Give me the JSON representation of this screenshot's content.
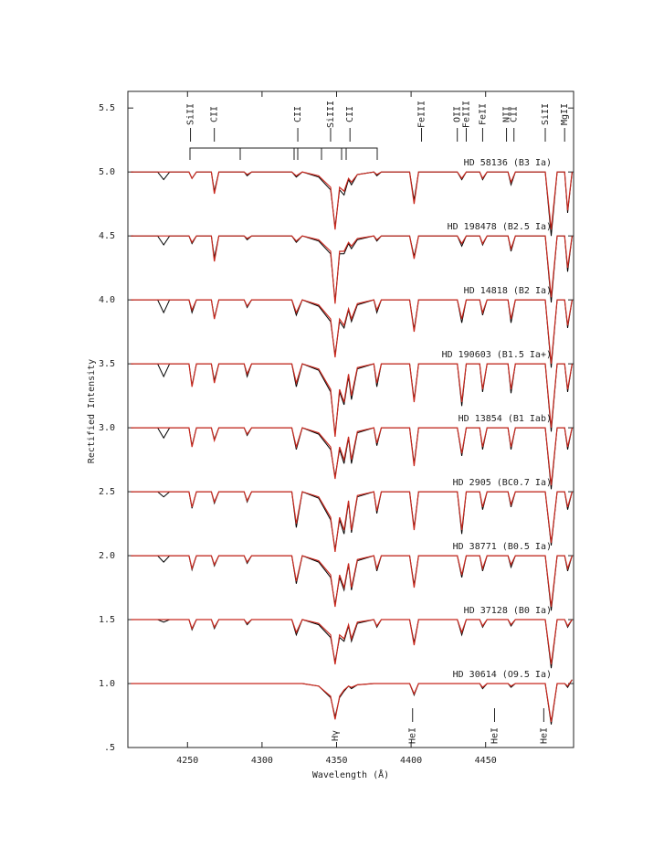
{
  "chart_data": {
    "type": "line",
    "x_label": "Wavelength (Å)",
    "y_label": "Rectified Intensity",
    "xlim": [
      4210,
      4509
    ],
    "ylim": [
      0.5,
      5.63
    ],
    "xticks": [
      4250,
      4300,
      4350,
      4400,
      4450
    ],
    "yticks": [
      {
        "value": 5.5,
        "label": "5.5"
      },
      {
        "value": 5,
        "label": "5.0"
      },
      {
        "value": 4.5,
        "label": "4.5"
      },
      {
        "value": 4,
        "label": "4.0"
      },
      {
        "value": 3.5,
        "label": "3.5"
      },
      {
        "value": 3,
        "label": "3.0"
      },
      {
        "value": 2.5,
        "label": "2.5"
      },
      {
        "value": 2,
        "label": "2.0"
      },
      {
        "value": 1.5,
        "label": "1.5"
      },
      {
        "value": 1,
        "label": "1.0"
      },
      {
        "value": 0.5,
        "label": ".5"
      }
    ],
    "x": [
      4212,
      4230,
      4234,
      4238,
      4251,
      4253,
      4256,
      4266,
      4268,
      4271,
      4288,
      4290,
      4293,
      4320,
      4323,
      4327,
      4338,
      4346,
      4349,
      4352,
      4355,
      4358,
      4360,
      4364,
      4375,
      4377,
      4380,
      4399,
      4402,
      4405,
      4431,
      4434,
      4437,
      4446,
      4448,
      4451,
      4465,
      4467,
      4470,
      4490,
      4494,
      4498,
      4503,
      4505,
      4508
    ],
    "series": [
      {
        "name": "HD 58136 (B3 Ia)",
        "color": "#000000",
        "values": [
          5,
          5,
          4.94,
          5,
          5,
          4.95,
          5,
          5,
          4.85,
          5,
          5,
          4.97,
          5,
          5,
          4.96,
          5,
          4.96,
          4.86,
          4.57,
          4.86,
          4.82,
          4.94,
          4.9,
          4.98,
          5,
          4.97,
          5,
          5,
          4.78,
          5,
          5,
          4.94,
          5,
          5,
          4.94,
          5,
          5,
          4.9,
          5,
          5,
          4.5,
          5,
          5,
          4.68,
          5
        ]
      },
      {
        "color": "#c8281e",
        "values": [
          5,
          5,
          5,
          5,
          5,
          4.95,
          5,
          5,
          4.83,
          5,
          5,
          4.98,
          5,
          5,
          4.97,
          5,
          4.97,
          4.88,
          4.55,
          4.88,
          4.85,
          4.95,
          4.92,
          4.98,
          5,
          4.98,
          5,
          5,
          4.75,
          5,
          5,
          4.95,
          5,
          5,
          4.95,
          5,
          5,
          4.92,
          5,
          5,
          4.55,
          5,
          5,
          4.7,
          5
        ]
      },
      {
        "name": "HD 198478 (B2.5 Ia)",
        "color": "#000000",
        "values": [
          4.5,
          4.5,
          4.43,
          4.5,
          4.5,
          4.44,
          4.5,
          4.5,
          4.33,
          4.5,
          4.5,
          4.47,
          4.5,
          4.5,
          4.45,
          4.5,
          4.46,
          4.36,
          3.99,
          4.36,
          4.36,
          4.44,
          4.4,
          4.47,
          4.5,
          4.46,
          4.5,
          4.5,
          4.34,
          4.5,
          4.5,
          4.42,
          4.5,
          4.5,
          4.43,
          4.5,
          4.5,
          4.38,
          4.5,
          4.5,
          3.98,
          4.5,
          4.5,
          4.22,
          4.5
        ]
      },
      {
        "color": "#c8281e",
        "values": [
          4.5,
          4.5,
          4.5,
          4.5,
          4.5,
          4.45,
          4.5,
          4.5,
          4.3,
          4.5,
          4.5,
          4.48,
          4.5,
          4.5,
          4.46,
          4.5,
          4.47,
          4.38,
          3.97,
          4.38,
          4.38,
          4.45,
          4.42,
          4.48,
          4.5,
          4.47,
          4.5,
          4.5,
          4.32,
          4.5,
          4.5,
          4.44,
          4.5,
          4.5,
          4.44,
          4.5,
          4.5,
          4.4,
          4.5,
          4.5,
          4.02,
          4.5,
          4.5,
          4.25,
          4.5
        ]
      },
      {
        "name": "HD 14818 (B2 Ia)",
        "color": "#000000",
        "values": [
          4,
          4,
          3.9,
          4,
          4,
          3.9,
          4,
          4,
          3.86,
          4,
          4,
          3.94,
          4,
          4,
          3.88,
          4,
          3.95,
          3.83,
          3.57,
          3.83,
          3.78,
          3.92,
          3.83,
          3.96,
          4,
          3.9,
          4,
          4,
          3.77,
          4,
          4,
          3.82,
          4,
          4,
          3.88,
          4,
          4,
          3.82,
          4,
          4,
          3.47,
          4,
          4,
          3.78,
          4
        ]
      },
      {
        "color": "#c8281e",
        "values": [
          4,
          4,
          4,
          4,
          4,
          3.92,
          4,
          4,
          3.85,
          4,
          4,
          3.95,
          4,
          4,
          3.9,
          4,
          3.96,
          3.85,
          3.55,
          3.85,
          3.8,
          3.93,
          3.85,
          3.97,
          4,
          3.92,
          4,
          4,
          3.75,
          4,
          4,
          3.85,
          4,
          4,
          3.9,
          4,
          4,
          3.85,
          4,
          4,
          3.5,
          4,
          4,
          3.8,
          4
        ]
      },
      {
        "name": "HD 190603 (B1.5 Ia+)",
        "color": "#000000",
        "values": [
          3.5,
          3.5,
          3.4,
          3.5,
          3.5,
          3.33,
          3.5,
          3.5,
          3.37,
          3.5,
          3.5,
          3.4,
          3.5,
          3.5,
          3.32,
          3.5,
          3.45,
          3.28,
          2.95,
          3.28,
          3.18,
          3.4,
          3.22,
          3.46,
          3.5,
          3.32,
          3.5,
          3.5,
          3.22,
          3.5,
          3.5,
          3.17,
          3.5,
          3.5,
          3.28,
          3.5,
          3.5,
          3.27,
          3.5,
          3.5,
          2.97,
          3.5,
          3.5,
          3.28,
          3.5
        ]
      },
      {
        "color": "#c8281e",
        "values": [
          3.5,
          3.5,
          3.5,
          3.5,
          3.5,
          3.32,
          3.5,
          3.5,
          3.35,
          3.5,
          3.5,
          3.42,
          3.5,
          3.5,
          3.35,
          3.5,
          3.46,
          3.3,
          2.93,
          3.3,
          3.2,
          3.42,
          3.25,
          3.47,
          3.5,
          3.35,
          3.5,
          3.5,
          3.2,
          3.5,
          3.5,
          3.2,
          3.5,
          3.5,
          3.3,
          3.5,
          3.5,
          3.3,
          3.5,
          3.5,
          3,
          3.5,
          3.5,
          3.3,
          3.5
        ]
      },
      {
        "name": "HD 13854 (B1 Iab)",
        "color": "#000000",
        "values": [
          3,
          3,
          2.92,
          3,
          3,
          2.86,
          3,
          3,
          2.91,
          3,
          3,
          2.94,
          3,
          3,
          2.83,
          3,
          2.95,
          2.83,
          2.62,
          2.83,
          2.72,
          2.92,
          2.72,
          2.96,
          3,
          2.86,
          3,
          3,
          2.72,
          3,
          3,
          2.78,
          3,
          3,
          2.83,
          3,
          3,
          2.83,
          3,
          3,
          2.52,
          3,
          3,
          2.83,
          3
        ]
      },
      {
        "color": "#c8281e",
        "values": [
          3,
          3,
          3,
          3,
          3,
          2.85,
          3,
          3,
          2.9,
          3,
          3,
          2.95,
          3,
          3,
          2.85,
          3,
          2.96,
          2.85,
          2.6,
          2.85,
          2.75,
          2.93,
          2.75,
          2.97,
          3,
          2.88,
          3,
          3,
          2.7,
          3,
          3,
          2.8,
          3,
          3,
          2.85,
          3,
          3,
          2.85,
          3,
          3,
          2.55,
          3,
          3,
          2.85,
          3
        ]
      },
      {
        "name": "HD 2905 (BC0.7 Ia)",
        "color": "#000000",
        "values": [
          2.5,
          2.5,
          2.46,
          2.5,
          2.5,
          2.37,
          2.5,
          2.5,
          2.41,
          2.5,
          2.5,
          2.42,
          2.5,
          2.5,
          2.22,
          2.5,
          2.45,
          2.28,
          2.05,
          2.28,
          2.17,
          2.42,
          2.18,
          2.46,
          2.5,
          2.33,
          2.5,
          2.5,
          2.22,
          2.5,
          2.5,
          2.17,
          2.5,
          2.5,
          2.36,
          2.5,
          2.5,
          2.38,
          2.5,
          2.5,
          2.08,
          2.5,
          2.5,
          2.36,
          2.5
        ]
      },
      {
        "color": "#c8281e",
        "values": [
          2.5,
          2.5,
          2.5,
          2.5,
          2.5,
          2.38,
          2.5,
          2.5,
          2.42,
          2.5,
          2.5,
          2.43,
          2.5,
          2.5,
          2.25,
          2.5,
          2.46,
          2.3,
          2.03,
          2.3,
          2.2,
          2.43,
          2.2,
          2.47,
          2.5,
          2.35,
          2.5,
          2.5,
          2.2,
          2.5,
          2.5,
          2.2,
          2.5,
          2.5,
          2.38,
          2.5,
          2.5,
          2.4,
          2.5,
          2.5,
          2.1,
          2.5,
          2.5,
          2.38,
          2.5
        ]
      },
      {
        "name": "HD 38771 (B0.5 Ia)",
        "color": "#000000",
        "values": [
          2,
          2,
          1.95,
          2,
          2,
          1.89,
          2,
          2,
          1.92,
          2,
          2,
          1.94,
          2,
          2,
          1.78,
          2,
          1.95,
          1.83,
          1.62,
          1.83,
          1.73,
          1.93,
          1.73,
          1.96,
          2,
          1.88,
          2,
          2,
          1.77,
          2,
          2,
          1.83,
          2,
          2,
          1.88,
          2,
          2,
          1.91,
          2,
          2,
          1.57,
          2,
          2,
          1.88,
          2
        ]
      },
      {
        "color": "#c8281e",
        "values": [
          2,
          2,
          2,
          2,
          2,
          1.9,
          2,
          2,
          1.93,
          2,
          2,
          1.95,
          2,
          2,
          1.8,
          2,
          1.96,
          1.85,
          1.6,
          1.85,
          1.75,
          1.94,
          1.75,
          1.97,
          2,
          1.9,
          2,
          2,
          1.75,
          2,
          2,
          1.85,
          2,
          2,
          1.9,
          2,
          2,
          1.93,
          2,
          2,
          1.6,
          2,
          2,
          1.9,
          2
        ]
      },
      {
        "name": "HD 37128 (B0 Ia)",
        "color": "#000000",
        "values": [
          1.5,
          1.5,
          1.48,
          1.5,
          1.5,
          1.42,
          1.5,
          1.5,
          1.43,
          1.5,
          1.5,
          1.46,
          1.5,
          1.5,
          1.38,
          1.5,
          1.46,
          1.36,
          1.17,
          1.36,
          1.33,
          1.45,
          1.33,
          1.47,
          1.5,
          1.44,
          1.5,
          1.5,
          1.32,
          1.5,
          1.5,
          1.38,
          1.5,
          1.5,
          1.44,
          1.5,
          1.5,
          1.45,
          1.5,
          1.5,
          1.12,
          1.5,
          1.5,
          1.44,
          1.5
        ]
      },
      {
        "color": "#c8281e",
        "values": [
          1.5,
          1.5,
          1.5,
          1.5,
          1.5,
          1.43,
          1.5,
          1.5,
          1.44,
          1.5,
          1.5,
          1.47,
          1.5,
          1.5,
          1.4,
          1.5,
          1.47,
          1.38,
          1.15,
          1.38,
          1.35,
          1.46,
          1.35,
          1.48,
          1.5,
          1.45,
          1.5,
          1.5,
          1.3,
          1.5,
          1.5,
          1.4,
          1.5,
          1.5,
          1.45,
          1.5,
          1.5,
          1.46,
          1.5,
          1.5,
          1.15,
          1.5,
          1.5,
          1.45,
          1.5
        ]
      },
      {
        "name": "HD 30614 (O9.5 Ia)",
        "color": "#000000",
        "values": [
          1,
          1,
          1,
          1,
          1,
          1,
          1,
          1,
          1,
          1,
          1,
          1,
          1,
          1,
          1,
          1,
          0.98,
          0.89,
          0.74,
          0.89,
          0.94,
          0.98,
          0.96,
          0.99,
          1,
          1,
          1,
          1,
          0.91,
          1,
          1,
          1,
          1,
          1,
          0.96,
          1,
          1,
          0.97,
          1,
          1,
          0.68,
          1,
          1,
          0.97,
          1.03
        ]
      },
      {
        "color": "#c8281e",
        "values": [
          1,
          1,
          1,
          1,
          1,
          1,
          1,
          1,
          1,
          1,
          1,
          1,
          1,
          1,
          1,
          1,
          0.98,
          0.9,
          0.72,
          0.9,
          0.95,
          0.98,
          0.97,
          0.99,
          1,
          1,
          1,
          1,
          0.92,
          1,
          1,
          1,
          1,
          1,
          0.97,
          1,
          1,
          0.98,
          1,
          1,
          0.7,
          1,
          1,
          0.98,
          1.03
        ]
      }
    ],
    "line_labels_top": [
      {
        "text": "SiII",
        "x": 4252
      },
      {
        "text": "CII",
        "x": 4268
      },
      {
        "text": "CII",
        "x": 4324
      },
      {
        "text": "SiIII",
        "x": 4346
      },
      {
        "text": "CII",
        "x": 4359
      },
      {
        "text": "FeIII",
        "x": 4407
      },
      {
        "text": "OII",
        "x": 4431
      },
      {
        "text": "FeIII",
        "x": 4437
      },
      {
        "text": "FeII",
        "x": 4448
      },
      {
        "text": "NII",
        "x": 4464
      },
      {
        "text": "CII",
        "x": 4469
      },
      {
        "text": "SiII",
        "x": 4490
      },
      {
        "text": "MgII",
        "x": 4503
      }
    ],
    "line_labels_bottom": [
      {
        "text": "Hγ",
        "x": 4349
      },
      {
        "text": "HeI",
        "x": 4401
      },
      {
        "text": "HeI",
        "x": 4456
      },
      {
        "text": "HeI",
        "x": 4489
      }
    ]
  }
}
